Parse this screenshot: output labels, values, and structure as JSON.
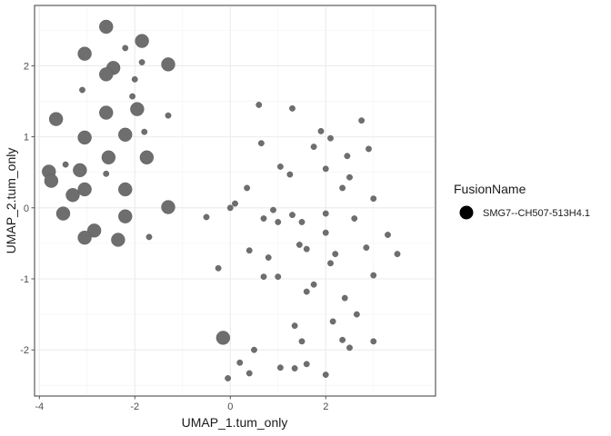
{
  "chart_data": {
    "type": "scatter",
    "xlabel": "UMAP_1.tum_only",
    "ylabel": "UMAP_2.tum_only",
    "xlim": [
      -4.1,
      4.3
    ],
    "ylim": [
      -2.65,
      2.85
    ],
    "x_ticks": [
      -4,
      -2,
      0,
      2
    ],
    "y_ticks": [
      -2,
      -1,
      0,
      1,
      2
    ],
    "x_tick_labels": [
      "-4",
      "-2",
      "0",
      "2"
    ],
    "y_tick_labels": [
      "-2",
      "-1",
      "0",
      "1",
      "2"
    ],
    "grid": true,
    "legend_position": "right",
    "legend": {
      "title": "FusionName",
      "entries": [
        {
          "label": "SMG7--CH507-513H4.1",
          "color": "#000000"
        }
      ]
    },
    "point_color": "#6e6e6e",
    "point_outline": "#555555",
    "point_size_note": "size encodes a per-sample value; large = bigger circles",
    "points": [
      {
        "x": -2.6,
        "y": 2.55,
        "size": "large"
      },
      {
        "x": -2.2,
        "y": 2.25,
        "size": "small"
      },
      {
        "x": -1.85,
        "y": 2.35,
        "size": "large"
      },
      {
        "x": -3.05,
        "y": 2.17,
        "size": "large"
      },
      {
        "x": -2.45,
        "y": 1.97,
        "size": "large"
      },
      {
        "x": -2.6,
        "y": 1.88,
        "size": "large"
      },
      {
        "x": -1.85,
        "y": 2.05,
        "size": "small"
      },
      {
        "x": -1.3,
        "y": 2.02,
        "size": "large"
      },
      {
        "x": -2.0,
        "y": 1.81,
        "size": "small"
      },
      {
        "x": -3.1,
        "y": 1.66,
        "size": "small"
      },
      {
        "x": -2.05,
        "y": 1.57,
        "size": "small"
      },
      {
        "x": -3.65,
        "y": 1.25,
        "size": "large"
      },
      {
        "x": -2.6,
        "y": 1.34,
        "size": "large"
      },
      {
        "x": -1.95,
        "y": 1.39,
        "size": "large"
      },
      {
        "x": -1.3,
        "y": 1.3,
        "size": "small"
      },
      {
        "x": -3.05,
        "y": 0.99,
        "size": "large"
      },
      {
        "x": -2.2,
        "y": 1.03,
        "size": "large"
      },
      {
        "x": -1.8,
        "y": 1.07,
        "size": "small"
      },
      {
        "x": -2.55,
        "y": 0.71,
        "size": "large"
      },
      {
        "x": -1.75,
        "y": 0.71,
        "size": "large"
      },
      {
        "x": -3.45,
        "y": 0.61,
        "size": "small"
      },
      {
        "x": -3.8,
        "y": 0.51,
        "size": "large"
      },
      {
        "x": -3.15,
        "y": 0.53,
        "size": "large"
      },
      {
        "x": -2.6,
        "y": 0.48,
        "size": "small"
      },
      {
        "x": -3.75,
        "y": 0.38,
        "size": "large"
      },
      {
        "x": -3.3,
        "y": 0.18,
        "size": "large"
      },
      {
        "x": -3.05,
        "y": 0.26,
        "size": "large"
      },
      {
        "x": -2.2,
        "y": 0.26,
        "size": "large"
      },
      {
        "x": -1.3,
        "y": 0.01,
        "size": "large"
      },
      {
        "x": -3.5,
        "y": -0.08,
        "size": "large"
      },
      {
        "x": -2.2,
        "y": -0.12,
        "size": "large"
      },
      {
        "x": -2.85,
        "y": -0.32,
        "size": "large"
      },
      {
        "x": -3.05,
        "y": -0.42,
        "size": "large"
      },
      {
        "x": -2.35,
        "y": -0.45,
        "size": "large"
      },
      {
        "x": -1.7,
        "y": -0.41,
        "size": "small"
      },
      {
        "x": -0.15,
        "y": -1.83,
        "size": "large"
      },
      {
        "x": 0.6,
        "y": 1.45,
        "size": "small"
      },
      {
        "x": 1.3,
        "y": 1.4,
        "size": "small"
      },
      {
        "x": 2.75,
        "y": 1.23,
        "size": "small"
      },
      {
        "x": 1.9,
        "y": 1.08,
        "size": "small"
      },
      {
        "x": 2.1,
        "y": 0.98,
        "size": "small"
      },
      {
        "x": 0.65,
        "y": 0.91,
        "size": "small"
      },
      {
        "x": 1.75,
        "y": 0.86,
        "size": "small"
      },
      {
        "x": 2.9,
        "y": 0.83,
        "size": "small"
      },
      {
        "x": 2.45,
        "y": 0.73,
        "size": "small"
      },
      {
        "x": 1.05,
        "y": 0.58,
        "size": "small"
      },
      {
        "x": 2.0,
        "y": 0.55,
        "size": "small"
      },
      {
        "x": 1.25,
        "y": 0.47,
        "size": "small"
      },
      {
        "x": 2.5,
        "y": 0.43,
        "size": "small"
      },
      {
        "x": 0.35,
        "y": 0.28,
        "size": "small"
      },
      {
        "x": 2.35,
        "y": 0.28,
        "size": "small"
      },
      {
        "x": 3.0,
        "y": 0.13,
        "size": "small"
      },
      {
        "x": 0.1,
        "y": 0.06,
        "size": "small"
      },
      {
        "x": 0.0,
        "y": 0.0,
        "size": "small"
      },
      {
        "x": 0.9,
        "y": -0.03,
        "size": "small"
      },
      {
        "x": 2.0,
        "y": -0.08,
        "size": "small"
      },
      {
        "x": -0.5,
        "y": -0.13,
        "size": "small"
      },
      {
        "x": 0.7,
        "y": -0.15,
        "size": "small"
      },
      {
        "x": 1.3,
        "y": -0.1,
        "size": "small"
      },
      {
        "x": 2.6,
        "y": -0.15,
        "size": "small"
      },
      {
        "x": 1.0,
        "y": -0.2,
        "size": "small"
      },
      {
        "x": 1.5,
        "y": -0.2,
        "size": "small"
      },
      {
        "x": 2.0,
        "y": -0.35,
        "size": "small"
      },
      {
        "x": 3.3,
        "y": -0.38,
        "size": "small"
      },
      {
        "x": 1.45,
        "y": -0.52,
        "size": "small"
      },
      {
        "x": 1.6,
        "y": -0.58,
        "size": "small"
      },
      {
        "x": 0.4,
        "y": -0.6,
        "size": "small"
      },
      {
        "x": 2.85,
        "y": -0.56,
        "size": "small"
      },
      {
        "x": 0.8,
        "y": -0.7,
        "size": "small"
      },
      {
        "x": 2.2,
        "y": -0.65,
        "size": "small"
      },
      {
        "x": 3.5,
        "y": -0.65,
        "size": "small"
      },
      {
        "x": 2.1,
        "y": -0.78,
        "size": "small"
      },
      {
        "x": -0.25,
        "y": -0.85,
        "size": "small"
      },
      {
        "x": 0.7,
        "y": -0.97,
        "size": "small"
      },
      {
        "x": 1.0,
        "y": -0.97,
        "size": "small"
      },
      {
        "x": 3.0,
        "y": -0.95,
        "size": "small"
      },
      {
        "x": 1.75,
        "y": -1.08,
        "size": "small"
      },
      {
        "x": 1.6,
        "y": -1.18,
        "size": "small"
      },
      {
        "x": 2.4,
        "y": -1.27,
        "size": "small"
      },
      {
        "x": 2.65,
        "y": -1.5,
        "size": "small"
      },
      {
        "x": 2.15,
        "y": -1.6,
        "size": "small"
      },
      {
        "x": 1.35,
        "y": -1.66,
        "size": "small"
      },
      {
        "x": 2.35,
        "y": -1.86,
        "size": "small"
      },
      {
        "x": 3.0,
        "y": -1.88,
        "size": "small"
      },
      {
        "x": 1.5,
        "y": -1.88,
        "size": "small"
      },
      {
        "x": 2.5,
        "y": -1.97,
        "size": "small"
      },
      {
        "x": 0.5,
        "y": -2.0,
        "size": "small"
      },
      {
        "x": 0.2,
        "y": -2.18,
        "size": "small"
      },
      {
        "x": 1.6,
        "y": -2.2,
        "size": "small"
      },
      {
        "x": 1.35,
        "y": -2.26,
        "size": "small"
      },
      {
        "x": 1.05,
        "y": -2.25,
        "size": "small"
      },
      {
        "x": 0.4,
        "y": -2.33,
        "size": "small"
      },
      {
        "x": 2.0,
        "y": -2.35,
        "size": "small"
      },
      {
        "x": -0.05,
        "y": -2.4,
        "size": "small"
      }
    ]
  }
}
